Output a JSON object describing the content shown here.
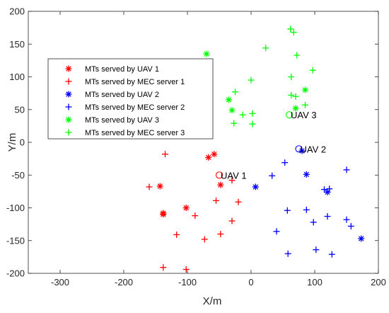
{
  "chart_data": {
    "type": "scatter",
    "title": "",
    "xlabel": "X/m",
    "ylabel": "Y/m",
    "xlim": [
      -350,
      200
    ],
    "ylim": [
      -200,
      200
    ],
    "xticks": [
      -300,
      -200,
      -100,
      0,
      100,
      200
    ],
    "yticks": [
      -200,
      -150,
      -100,
      -50,
      0,
      50,
      100,
      150,
      200
    ],
    "grid": false,
    "legend_position": "top-left",
    "colors": {
      "red": "#ff0000",
      "blue": "#0000ff",
      "green": "#00ff00"
    },
    "series": [
      {
        "name": "MTs served by UAV 1",
        "marker": "asterisk",
        "color": "#ff0000",
        "points": [
          [
            -67,
            -23
          ],
          [
            -58,
            -18
          ],
          [
            -48,
            -65
          ],
          [
            -143,
            -67
          ],
          [
            -138,
            -108
          ],
          [
            -138,
            -110
          ],
          [
            -102,
            -100
          ]
        ]
      },
      {
        "name": "MTs served by MEC server 1",
        "marker": "plus",
        "color": "#ff0000",
        "points": [
          [
            -160,
            -68
          ],
          [
            -135,
            -18
          ],
          [
            -138,
            -191
          ],
          [
            -102,
            -194
          ],
          [
            -88,
            -112
          ],
          [
            -117,
            -141
          ],
          [
            -73,
            -148
          ],
          [
            -48,
            -140
          ],
          [
            -55,
            -89
          ],
          [
            -30,
            -120
          ],
          [
            -30,
            -58
          ],
          [
            -20,
            -91
          ]
        ]
      },
      {
        "name": "MTs served by UAV 2",
        "marker": "asterisk",
        "color": "#0000ff",
        "points": [
          [
            7,
            -68
          ],
          [
            80,
            -13
          ],
          [
            87,
            -49
          ],
          [
            120,
            -76
          ],
          [
            173,
            -147
          ]
        ]
      },
      {
        "name": "MTs served by MEC server 2",
        "marker": "plus",
        "color": "#0000ff",
        "points": [
          [
            33,
            -51
          ],
          [
            53,
            -31
          ],
          [
            57,
            -104
          ],
          [
            58,
            -170
          ],
          [
            40,
            -136
          ],
          [
            87,
            -103
          ],
          [
            98,
            -122
          ],
          [
            102,
            -164
          ],
          [
            115,
            -72
          ],
          [
            120,
            -113
          ],
          [
            123,
            -71
          ],
          [
            127,
            -171
          ],
          [
            150,
            -42
          ],
          [
            150,
            -118
          ],
          [
            157,
            -128
          ]
        ]
      },
      {
        "name": "MTs served by UAV 3",
        "marker": "asterisk",
        "color": "#00ff00",
        "points": [
          [
            -70,
            135
          ],
          [
            -35,
            65
          ],
          [
            -30,
            49
          ],
          [
            70,
            52
          ],
          [
            85,
            80
          ]
        ]
      },
      {
        "name": "MTs served by MEC server 3",
        "marker": "plus",
        "color": "#00ff00",
        "points": [
          [
            23,
            144
          ],
          [
            62,
            173
          ],
          [
            67,
            168
          ],
          [
            72,
            133
          ],
          [
            63,
            100
          ],
          [
            97,
            110
          ],
          [
            0,
            95
          ],
          [
            -25,
            77
          ],
          [
            -13,
            42
          ],
          [
            2,
            44
          ],
          [
            2,
            28
          ],
          [
            -27,
            29
          ],
          [
            63,
            72
          ],
          [
            70,
            70
          ],
          [
            85,
            57
          ]
        ]
      }
    ],
    "annotations": [
      {
        "text": "UAV 1",
        "x": -50,
        "y": -50,
        "color": "#ff0000"
      },
      {
        "text": "UAV 2",
        "x": 75,
        "y": -10,
        "color": "#0000ff"
      },
      {
        "text": "UAV 3",
        "x": 60,
        "y": 42,
        "color": "#00ff00"
      }
    ]
  }
}
